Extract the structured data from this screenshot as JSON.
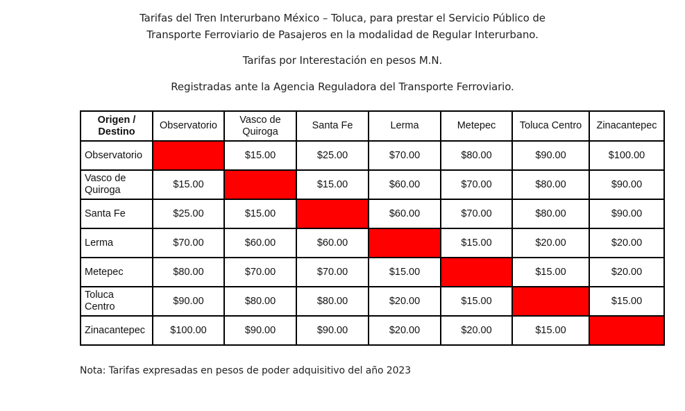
{
  "header": {
    "title_line_1": "Tarifas del Tren Interurbano México – Toluca, para prestar el Servicio Público de",
    "title_line_2": "Transporte Ferroviario de Pasajeros en la modalidad de Regular Interurbano.",
    "subtitle_1": "Tarifas por Interestación en pesos M.N.",
    "subtitle_2": "Registradas ante la Agencia Reguladora del Transporte Ferroviario."
  },
  "table": {
    "corner_label_line_1": "Origen /",
    "corner_label_line_2": "Destino",
    "columns": [
      {
        "line_1": "Observatorio",
        "line_2": ""
      },
      {
        "line_1": "Vasco de",
        "line_2": "Quiroga"
      },
      {
        "line_1": "Santa Fe",
        "line_2": ""
      },
      {
        "line_1": "Lerma",
        "line_2": ""
      },
      {
        "line_1": "Metepec",
        "line_2": ""
      },
      {
        "line_1": "Toluca Centro",
        "line_2": ""
      },
      {
        "line_1": "Zinacantepec",
        "line_2": ""
      }
    ],
    "diagonal_color": "#ff0000",
    "rows": [
      {
        "label_line_1": "Observatorio",
        "label_line_2": "",
        "values": [
          "",
          "$15.00",
          "$25.00",
          "$70.00",
          "$80.00",
          "$90.00",
          "$100.00"
        ]
      },
      {
        "label_line_1": "Vasco de",
        "label_line_2": "Quiroga",
        "values": [
          "$15.00",
          "",
          "$15.00",
          "$60.00",
          "$70.00",
          "$80.00",
          "$90.00"
        ]
      },
      {
        "label_line_1": "Santa Fe",
        "label_line_2": "",
        "values": [
          "$25.00",
          "$15.00",
          "",
          "$60.00",
          "$70.00",
          "$80.00",
          "$90.00"
        ]
      },
      {
        "label_line_1": "Lerma",
        "label_line_2": "",
        "values": [
          "$70.00",
          "$60.00",
          "$60.00",
          "",
          "$15.00",
          "$20.00",
          "$20.00"
        ]
      },
      {
        "label_line_1": "Metepec",
        "label_line_2": "",
        "values": [
          "$80.00",
          "$70.00",
          "$70.00",
          "$15.00",
          "",
          "$15.00",
          "$20.00"
        ]
      },
      {
        "label_line_1": "Toluca",
        "label_line_2": "Centro",
        "values": [
          "$90.00",
          "$80.00",
          "$80.00",
          "$20.00",
          "$15.00",
          "",
          "$15.00"
        ]
      },
      {
        "label_line_1": "Zinacantepec",
        "label_line_2": "",
        "values": [
          "$100.00",
          "$90.00",
          "$90.00",
          "$20.00",
          "$20.00",
          "$15.00",
          ""
        ]
      }
    ]
  },
  "footer": {
    "note": "Nota: Tarifas expresadas en pesos de poder adquisitivo del año 2023"
  }
}
